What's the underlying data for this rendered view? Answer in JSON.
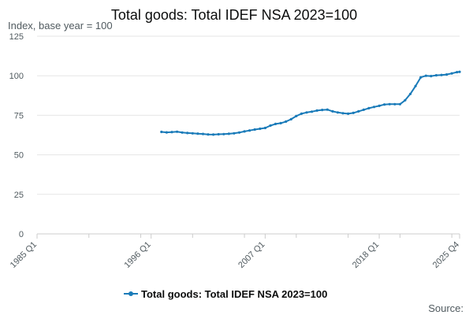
{
  "chart_data": {
    "type": "line",
    "title": "Total goods: Total IDEF NSA 2023=100",
    "ylabel": "Index, base year = 100",
    "xlabel": "",
    "ylim": [
      0,
      125
    ],
    "yticks": [
      0,
      25,
      50,
      75,
      100,
      125
    ],
    "xlim": [
      "1985 Q1",
      "2025 Q4"
    ],
    "xticks": [
      "1985 Q1",
      "1996 Q1",
      "2007 Q1",
      "2018 Q1",
      "2025 Q4"
    ],
    "grid": true,
    "legend_position": "bottom",
    "colors": {
      "series": "#1a7bb9",
      "grid": "#e6e6e6",
      "axis": "#cccccc"
    },
    "series": [
      {
        "name": "Total goods: Total IDEF NSA 2023=100",
        "x": [
          "1997 Q1",
          "1997 Q3",
          "1998 Q1",
          "1998 Q3",
          "1999 Q1",
          "1999 Q3",
          "2000 Q1",
          "2000 Q3",
          "2001 Q1",
          "2001 Q3",
          "2002 Q1",
          "2002 Q3",
          "2003 Q1",
          "2003 Q3",
          "2004 Q1",
          "2004 Q3",
          "2005 Q1",
          "2005 Q3",
          "2006 Q1",
          "2006 Q3",
          "2007 Q1",
          "2007 Q3",
          "2008 Q1",
          "2008 Q3",
          "2009 Q1",
          "2009 Q3",
          "2010 Q1",
          "2010 Q3",
          "2011 Q1",
          "2011 Q3",
          "2012 Q1",
          "2012 Q3",
          "2013 Q1",
          "2013 Q3",
          "2014 Q1",
          "2014 Q3",
          "2015 Q1",
          "2015 Q3",
          "2016 Q1",
          "2016 Q3",
          "2017 Q1",
          "2017 Q3",
          "2018 Q1",
          "2018 Q3",
          "2019 Q1",
          "2019 Q3",
          "2020 Q1",
          "2020 Q3",
          "2021 Q1",
          "2021 Q3",
          "2022 Q1",
          "2022 Q3",
          "2023 Q1",
          "2023 Q3",
          "2024 Q1",
          "2024 Q3",
          "2025 Q1",
          "2025 Q3",
          "2025 Q4"
        ],
        "values": [
          64.5,
          64.2,
          64.4,
          64.6,
          64.1,
          63.8,
          63.6,
          63.4,
          63.2,
          62.9,
          62.8,
          63.0,
          63.1,
          63.3,
          63.6,
          64.1,
          64.8,
          65.4,
          66.0,
          66.5,
          67.0,
          68.5,
          69.5,
          70.0,
          71.0,
          72.5,
          74.5,
          76.0,
          76.8,
          77.3,
          78.0,
          78.4,
          78.6,
          77.5,
          76.8,
          76.3,
          76.0,
          76.5,
          77.5,
          78.5,
          79.5,
          80.3,
          81.0,
          81.8,
          82.0,
          82.0,
          82.0,
          84.5,
          88.5,
          93.5,
          99.0,
          100.0,
          99.8,
          100.3,
          100.5,
          100.8,
          101.5,
          102.3,
          102.5
        ]
      }
    ],
    "source_label": "Source:"
  }
}
